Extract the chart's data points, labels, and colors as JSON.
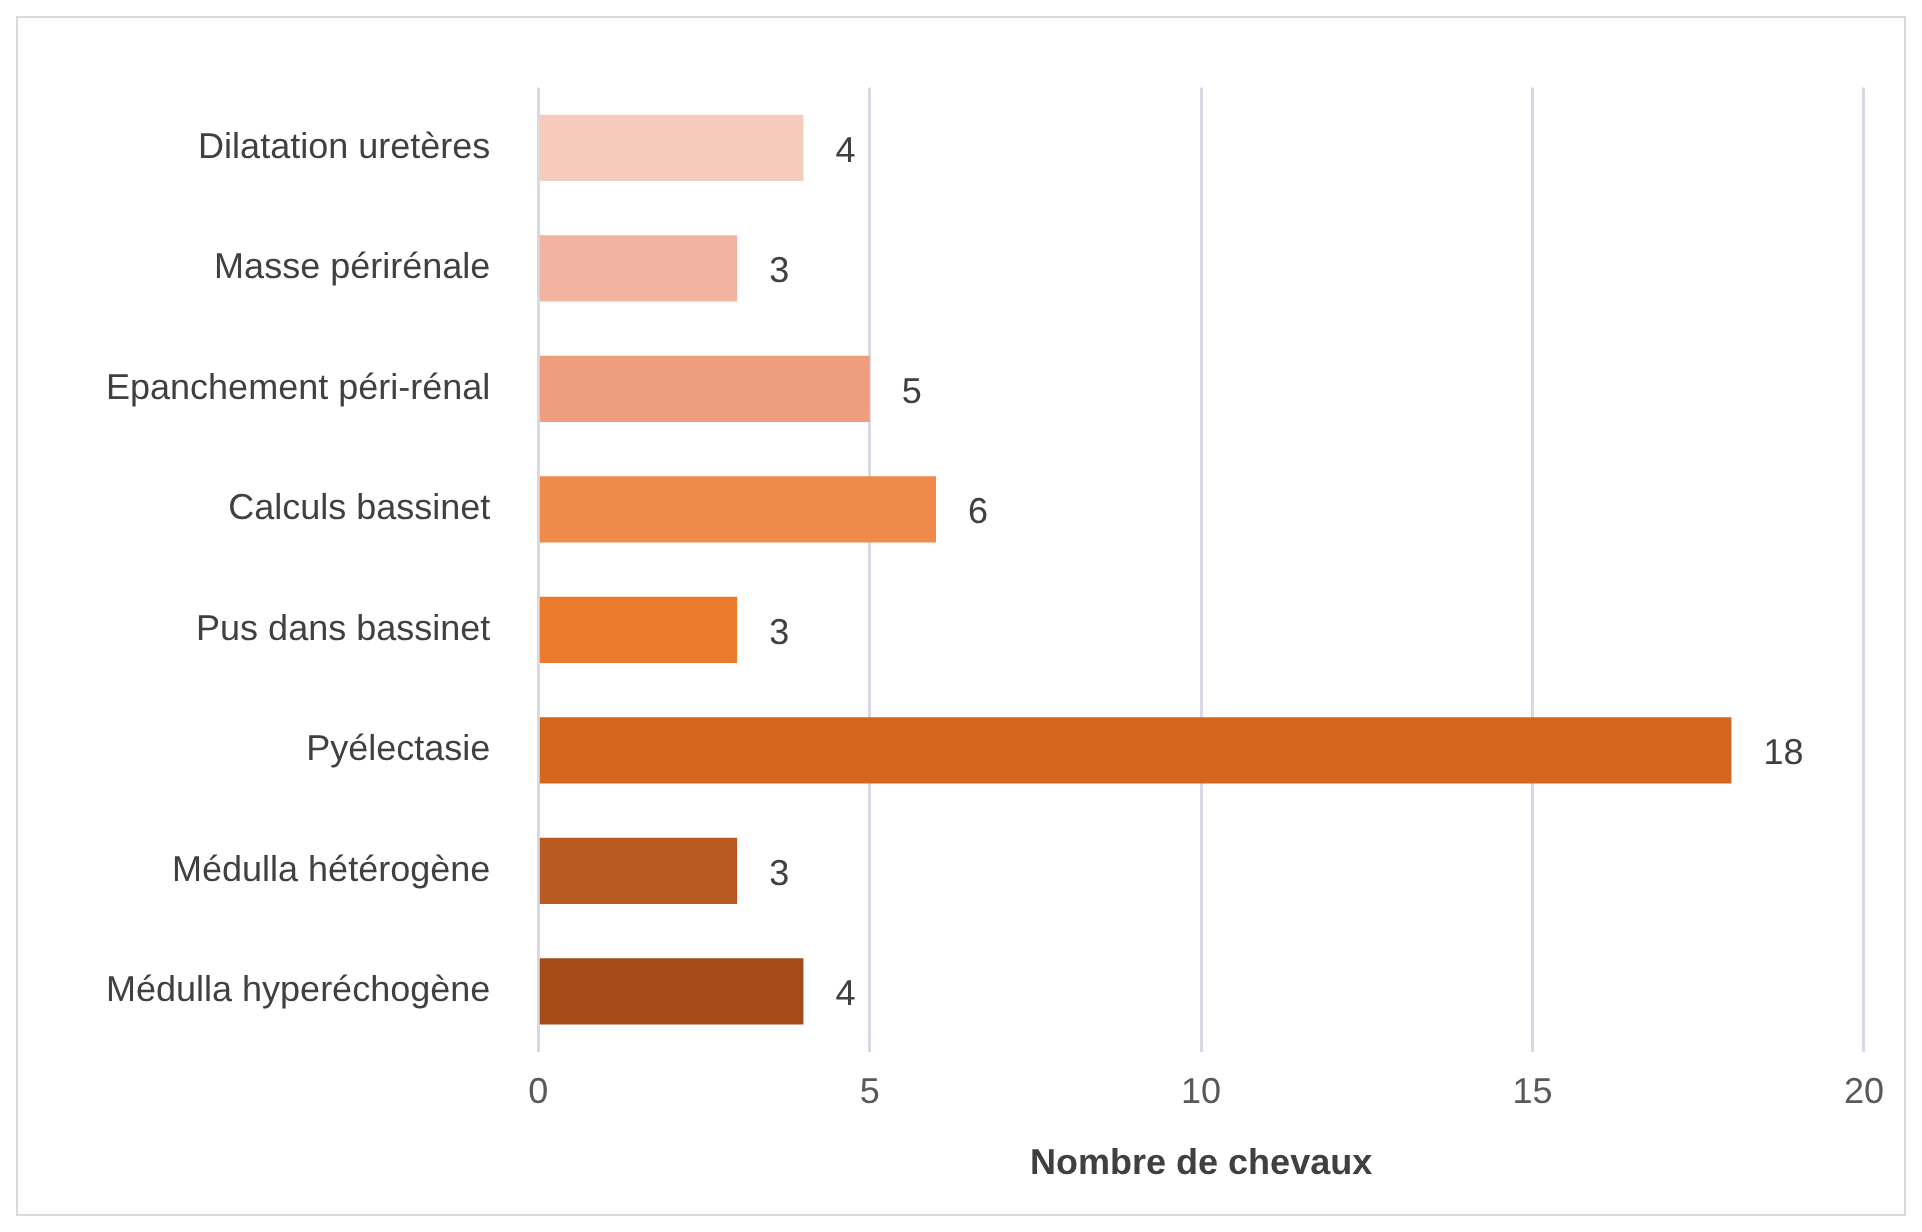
{
  "chart_data": {
    "type": "bar",
    "orientation": "horizontal",
    "xlabel": "Nombre de chevaux",
    "categories": [
      "Dilatation uretères",
      "Masse périrénale",
      "Epanchement péri-rénal",
      "Calculs bassinet",
      "Pus dans bassinet",
      "Pyélectasie",
      "Médulla hétérogène",
      "Médulla hyperéchogène"
    ],
    "values": [
      4,
      3,
      5,
      6,
      3,
      18,
      3,
      4
    ],
    "colors": [
      "#f5cbbd",
      "#f2b4a0",
      "#ee9e7c",
      "#f08a4b",
      "#ec7a2b",
      "#d4661e",
      "#b95a23",
      "#a34c1a"
    ],
    "xlim": [
      0,
      20
    ],
    "xticks": [
      0,
      5,
      10,
      15,
      20
    ],
    "grid": "x",
    "data_labels": true,
    "legend": false
  }
}
